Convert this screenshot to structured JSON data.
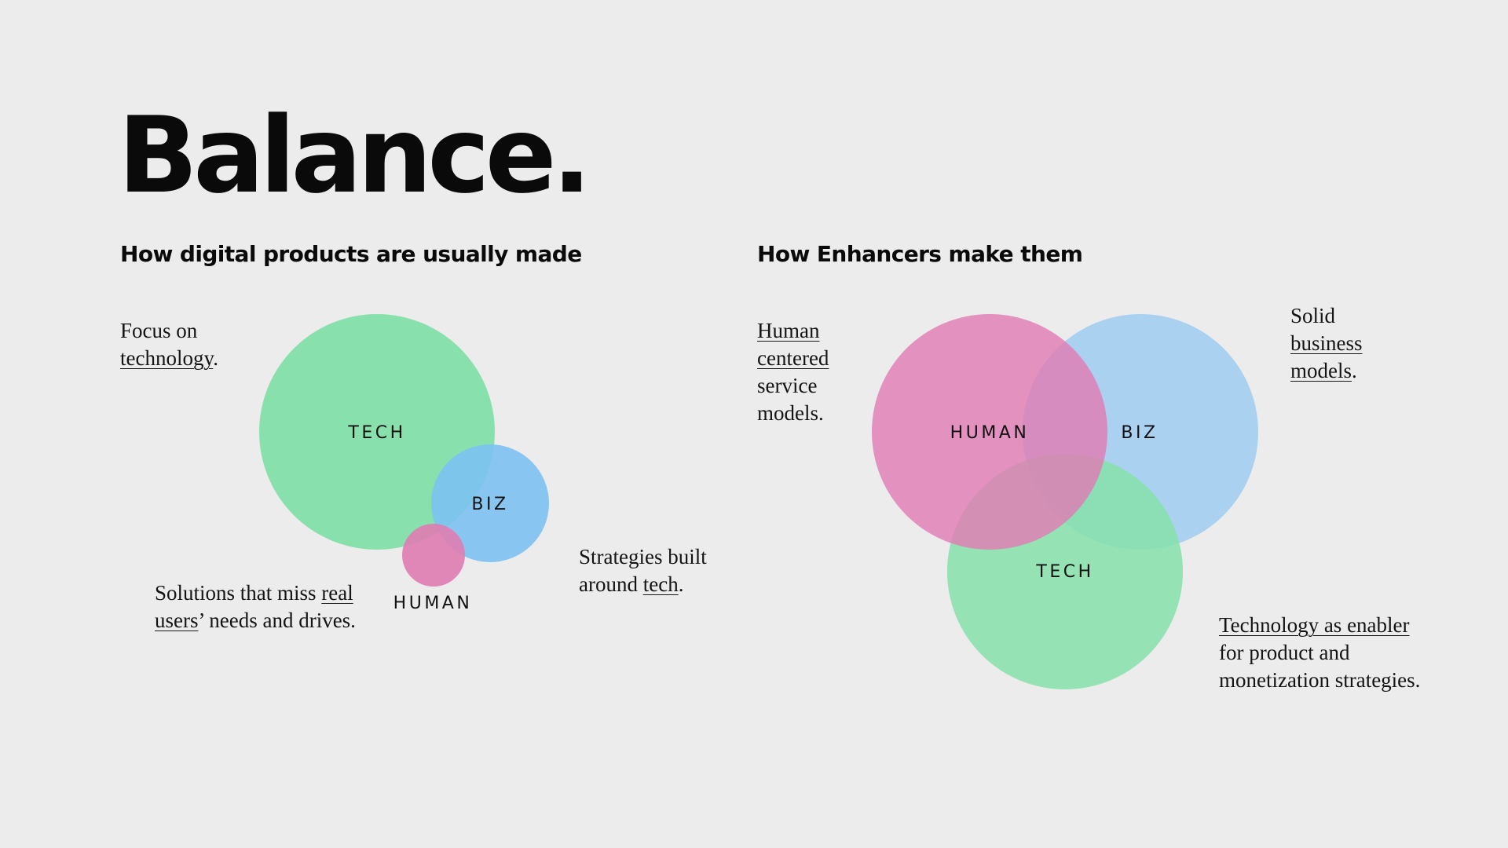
{
  "title": "Balance.",
  "left": {
    "heading": "How digital products are usually made",
    "circles": {
      "tech": "TECH",
      "biz": "BIZ",
      "human": "HUMAN"
    },
    "note_tech": {
      "line1": "Focus on",
      "link": "technology",
      "end": "."
    },
    "note_human": {
      "pre": "Solutions that miss ",
      "link1": "real",
      "link2": "users",
      "post": "’ needs and drives."
    },
    "note_biz": {
      "line1": "Strategies built",
      "pre": "around ",
      "link": "tech",
      "end": "."
    }
  },
  "right": {
    "heading": "How Enhancers make them",
    "circles": {
      "human": "HUMAN",
      "biz": "BIZ",
      "tech": "TECH"
    },
    "note_human": {
      "link1": "Human",
      "link2": "centered",
      "line3": "service",
      "line4": "models."
    },
    "note_biz": {
      "line1": "Solid",
      "link1": "business",
      "link2": "models",
      "end": "."
    },
    "note_tech": {
      "link": "Technology as enabler",
      "line2": "for product and",
      "line3": "monetization strategies."
    }
  },
  "colors": {
    "background": "#ececec",
    "tech_green": "#86e0aa",
    "biz_blue": "#7dc2f2",
    "biz_light_blue": "#a8d0f0",
    "human_pink": "#e07cb3"
  }
}
